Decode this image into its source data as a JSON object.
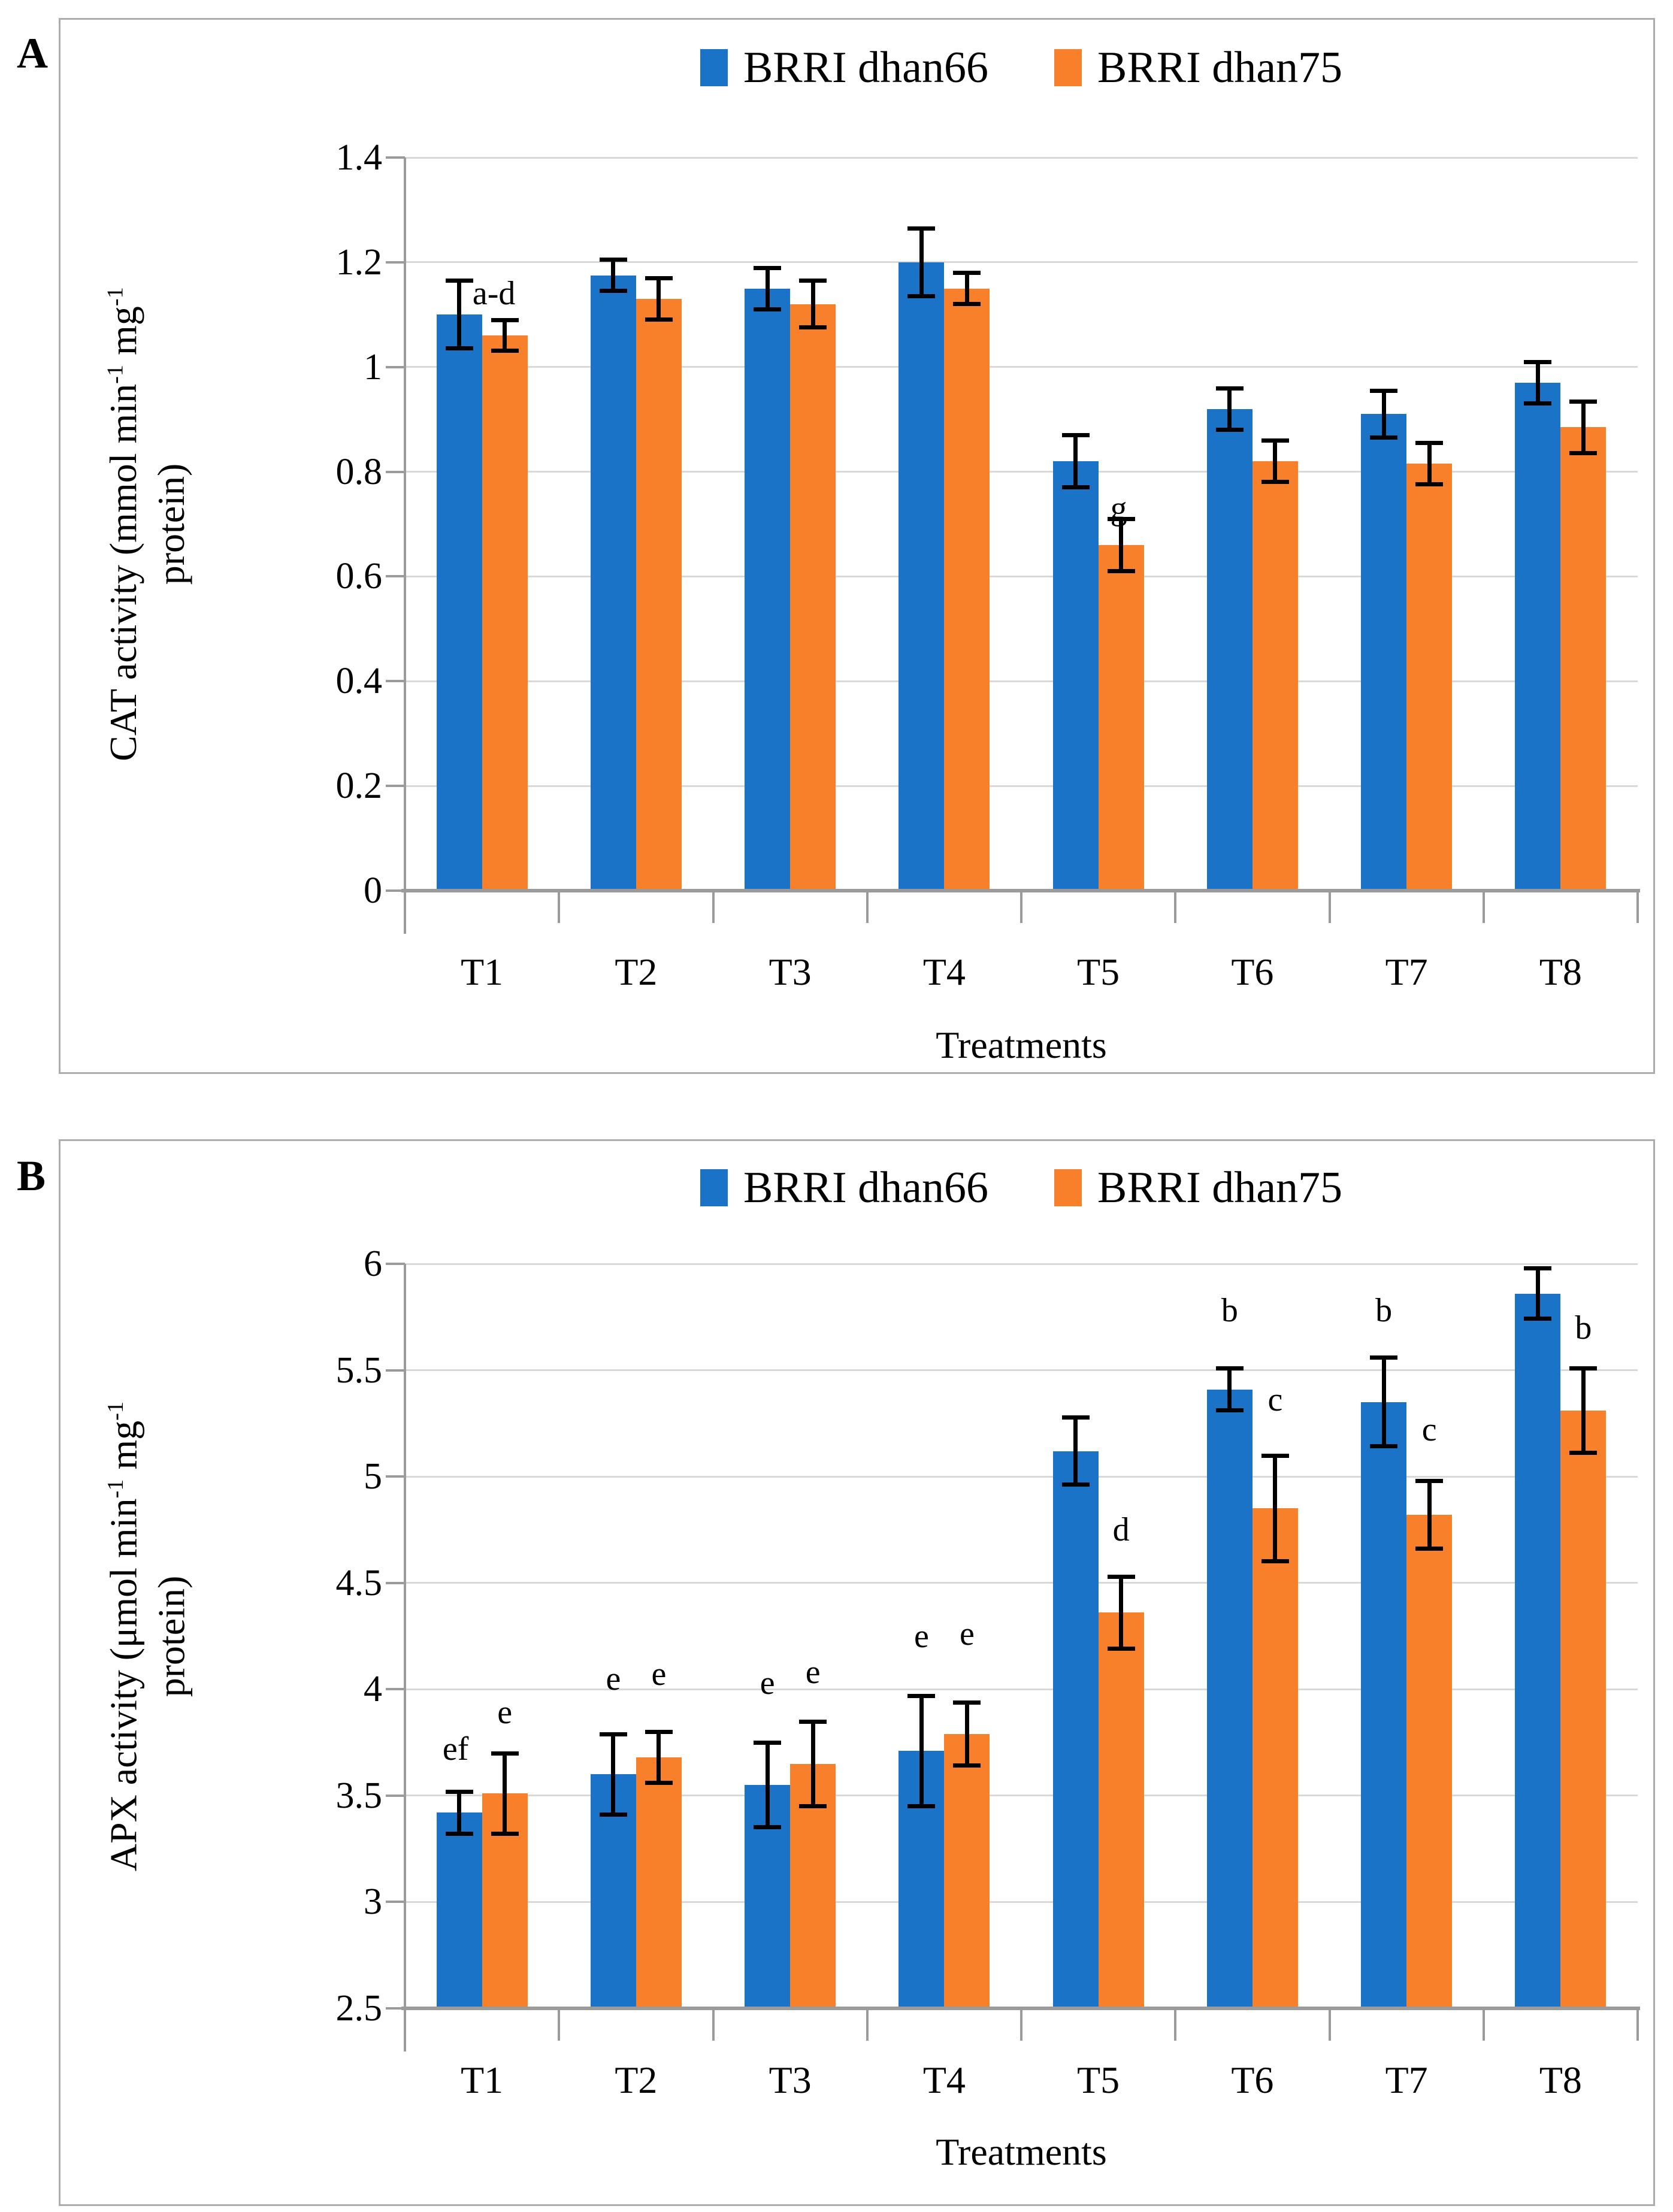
{
  "figure": {
    "panel_a_label": "A",
    "panel_b_label": "B"
  },
  "colors": {
    "series_blue": "#1B73C7",
    "series_orange": "#F8802B",
    "gridline": "#D9D9D9",
    "axis": "#9B9B9B",
    "frame_border": "#ACACAC",
    "error_bar": "#000000",
    "text": "#000000"
  },
  "chart_data": [
    {
      "type": "bar",
      "panel_label": "A",
      "title": "",
      "xlabel": "Treatments",
      "ylabel": "CAT activity (mmol min⁻¹ mg⁻¹ protein)",
      "ylabel_parts": [
        {
          "t": "CAT activity (mmol min"
        },
        {
          "sup": "-1"
        },
        {
          "t": " mg"
        },
        {
          "sup": "-1"
        },
        {
          "br": true
        },
        {
          "t": "protein)"
        }
      ],
      "ylim": [
        0,
        1.4
      ],
      "y_ticks": [
        "1.4",
        "1.2",
        "1",
        "0.8",
        "0.6",
        "0.4",
        "0.2",
        "0"
      ],
      "grid": true,
      "legend_position": "top",
      "categories": [
        "T1",
        "T2",
        "T3",
        "T4",
        "T5",
        "T6",
        "T7",
        "T8"
      ],
      "series": [
        {
          "name": "BRRI dhan66",
          "color_key": "series_blue",
          "values": [
            1.1,
            1.175,
            1.15,
            1.2,
            0.82,
            0.92,
            0.91,
            0.97
          ],
          "errors": [
            0.065,
            0.03,
            0.04,
            0.065,
            0.05,
            0.04,
            0.045,
            0.04
          ]
        },
        {
          "name": "BRRI dhan75",
          "color_key": "series_orange",
          "values": [
            1.06,
            1.13,
            1.12,
            1.15,
            0.66,
            0.82,
            0.815,
            0.885
          ],
          "errors": [
            0.03,
            0.04,
            0.045,
            0.03,
            0.05,
            0.04,
            0.04,
            0.05
          ]
        }
      ],
      "annotations": [
        {
          "series": 0,
          "cat": 0,
          "text": "a-d",
          "y": 1.14,
          "dx": 58
        },
        {
          "series": 1,
          "cat": 4,
          "text": "g",
          "y": 0.73,
          "dx": -4
        }
      ]
    },
    {
      "type": "bar",
      "panel_label": "B",
      "title": "",
      "xlabel": "Treatments",
      "ylabel": "APX activity (μmol min⁻¹ mg⁻¹ protein)",
      "ylabel_parts": [
        {
          "t": "APX activity (μmol min"
        },
        {
          "sup": "-1"
        },
        {
          "t": " mg"
        },
        {
          "sup": "-1"
        },
        {
          "br": true
        },
        {
          "t": "protein)"
        }
      ],
      "ylim": [
        2.5,
        6
      ],
      "y_ticks": [
        "6",
        "5.5",
        "5",
        "4.5",
        "4",
        "3.5",
        "3",
        "2.5"
      ],
      "grid": true,
      "legend_position": "top",
      "categories": [
        "T1",
        "T2",
        "T3",
        "T4",
        "T5",
        "T6",
        "T7",
        "T8"
      ],
      "series": [
        {
          "name": "BRRI dhan66",
          "color_key": "series_blue",
          "values": [
            3.42,
            3.6,
            3.55,
            3.71,
            5.12,
            5.41,
            5.35,
            5.86
          ],
          "errors": [
            0.1,
            0.19,
            0.2,
            0.26,
            0.16,
            0.1,
            0.21,
            0.12
          ]
        },
        {
          "name": "BRRI dhan75",
          "color_key": "series_orange",
          "values": [
            3.51,
            3.68,
            3.65,
            3.79,
            4.36,
            4.85,
            4.82,
            5.31
          ],
          "errors": [
            0.19,
            0.12,
            0.2,
            0.15,
            0.17,
            0.25,
            0.16,
            0.2
          ]
        }
      ],
      "annotations": [
        {
          "series": 0,
          "cat": 0,
          "text": "ef",
          "y": 3.72,
          "dx": -6
        },
        {
          "series": 1,
          "cat": 0,
          "text": "e",
          "y": 3.89,
          "dx": 0
        },
        {
          "series": 0,
          "cat": 1,
          "text": "e",
          "y": 4.05,
          "dx": 0
        },
        {
          "series": 1,
          "cat": 1,
          "text": "e",
          "y": 4.07,
          "dx": 0
        },
        {
          "series": 0,
          "cat": 2,
          "text": "e",
          "y": 4.03,
          "dx": 0
        },
        {
          "series": 1,
          "cat": 2,
          "text": "e",
          "y": 4.08,
          "dx": 0
        },
        {
          "series": 0,
          "cat": 3,
          "text": "e",
          "y": 4.25,
          "dx": 0
        },
        {
          "series": 1,
          "cat": 3,
          "text": "e",
          "y": 4.26,
          "dx": 0
        },
        {
          "series": 1,
          "cat": 4,
          "text": "d",
          "y": 4.75,
          "dx": 0
        },
        {
          "series": 0,
          "cat": 5,
          "text": "b",
          "y": 5.78,
          "dx": 0
        },
        {
          "series": 1,
          "cat": 5,
          "text": "c",
          "y": 5.36,
          "dx": 0
        },
        {
          "series": 0,
          "cat": 6,
          "text": "b",
          "y": 5.78,
          "dx": 0
        },
        {
          "series": 1,
          "cat": 6,
          "text": "c",
          "y": 5.22,
          "dx": 0
        },
        {
          "series": 1,
          "cat": 7,
          "text": "b",
          "y": 5.7,
          "dx": 0
        }
      ]
    }
  ]
}
